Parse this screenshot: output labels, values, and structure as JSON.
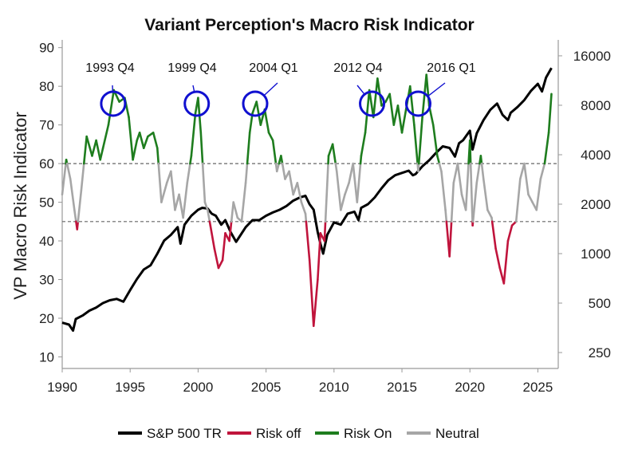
{
  "chart_data": {
    "type": "line",
    "title": "Variant Perception's Macro Risk Indicator",
    "ylabel": "VP Macro Risk Indicator",
    "xlim": [
      1990,
      2026.5
    ],
    "ylim": [
      7,
      92
    ],
    "y2lim": [
      200,
      20000
    ],
    "x_ticks": [
      1990,
      1995,
      2000,
      2005,
      2010,
      2015,
      2020,
      2025
    ],
    "y_ticks": [
      10,
      20,
      30,
      40,
      50,
      60,
      70,
      80,
      90
    ],
    "y2_ticks": [
      250,
      500,
      1000,
      2000,
      4000,
      8000,
      16000
    ],
    "thresholds": [
      60,
      45
    ],
    "colors": {
      "sp500": "#000000",
      "risk_off": "#c0143c",
      "risk_on": "#1e7d1e",
      "neutral": "#a6a6a6",
      "circle": "#1010d0",
      "axis": "#999999"
    },
    "legend": [
      {
        "label": "S&P 500 TR",
        "color": "#000000"
      },
      {
        "label": "Risk off",
        "color": "#c0143c"
      },
      {
        "label": "Risk On",
        "color": "#1e7d1e"
      },
      {
        "label": "Neutral",
        "color": "#a6a6a6"
      }
    ],
    "annotations": [
      {
        "label": "1993 Q4",
        "x": 1993.75,
        "y": 75.5
      },
      {
        "label": "1999 Q4",
        "x": 1999.9,
        "y": 75.5
      },
      {
        "label": "2004 Q1",
        "x": 2004.2,
        "y": 75.5
      },
      {
        "label": "2012 Q4",
        "x": 2012.8,
        "y": 75.5
      },
      {
        "label": "2016 Q1",
        "x": 2016.2,
        "y": 75.5
      }
    ],
    "series": [
      {
        "name": "VP Macro Risk Indicator",
        "x": [
          1990.0,
          1990.3,
          1990.6,
          1990.9,
          1991.1,
          1991.4,
          1991.8,
          1992.2,
          1992.5,
          1992.8,
          1993.0,
          1993.4,
          1993.8,
          1994.2,
          1994.6,
          1994.9,
          1995.2,
          1995.5,
          1995.7,
          1996.0,
          1996.3,
          1996.7,
          1997.0,
          1997.3,
          1997.7,
          1998.0,
          1998.3,
          1998.6,
          1998.9,
          1999.2,
          1999.5,
          1999.8,
          2000.0,
          2000.2,
          2000.5,
          2000.7,
          2000.9,
          2001.2,
          2001.5,
          2001.8,
          2002.0,
          2002.3,
          2002.6,
          2002.9,
          2003.2,
          2003.5,
          2003.8,
          2004.0,
          2004.3,
          2004.6,
          2004.9,
          2005.2,
          2005.5,
          2005.8,
          2006.1,
          2006.4,
          2006.7,
          2007.0,
          2007.3,
          2007.6,
          2007.9,
          2008.2,
          2008.5,
          2008.8,
          2009.0,
          2009.3,
          2009.6,
          2009.9,
          2010.2,
          2010.5,
          2010.8,
          2011.1,
          2011.4,
          2011.7,
          2012.0,
          2012.3,
          2012.6,
          2012.9,
          2013.2,
          2013.5,
          2013.8,
          2014.1,
          2014.4,
          2014.7,
          2015.0,
          2015.3,
          2015.6,
          2015.9,
          2016.2,
          2016.5,
          2016.8,
          2017.0,
          2017.3,
          2017.6,
          2017.9,
          2018.2,
          2018.5,
          2018.8,
          2019.1,
          2019.4,
          2019.7,
          2020.0,
          2020.2,
          2020.5,
          2020.8,
          2021.0,
          2021.3,
          2021.6,
          2021.9,
          2022.2,
          2022.5,
          2022.8,
          2023.1,
          2023.4,
          2023.7,
          2024.0,
          2024.3,
          2024.6,
          2024.9,
          2025.2,
          2025.5,
          2025.8,
          2026.0
        ],
        "y": [
          52,
          61,
          56,
          48,
          43,
          53,
          67,
          62,
          66,
          61,
          64,
          70,
          79,
          76,
          77,
          72,
          61,
          66,
          68,
          64,
          67,
          68,
          64,
          50,
          55,
          58,
          48,
          52,
          46,
          55,
          62,
          73,
          77,
          68,
          50,
          48,
          44,
          38,
          33,
          35,
          42,
          40,
          50,
          46,
          45,
          55,
          68,
          73,
          76,
          70,
          74,
          68,
          66,
          58,
          62,
          56,
          58,
          52,
          55,
          50,
          47,
          35,
          18,
          30,
          42,
          40,
          62,
          65,
          58,
          48,
          52,
          55,
          60,
          50,
          62,
          68,
          79,
          72,
          82,
          75,
          76,
          78,
          70,
          75,
          68,
          74,
          80,
          70,
          58,
          72,
          83,
          75,
          70,
          62,
          58,
          48,
          36,
          55,
          60,
          52,
          48,
          66,
          44,
          55,
          62,
          56,
          48,
          46,
          38,
          33,
          29,
          40,
          44,
          45,
          56,
          60,
          52,
          50,
          48,
          56,
          60,
          68,
          78
        ]
      },
      {
        "name": "S&P 500 TR",
        "x": [
          1990.0,
          1990.5,
          1990.8,
          1991.0,
          1991.5,
          1992.0,
          1992.5,
          1993.0,
          1993.5,
          1994.0,
          1994.5,
          1995.0,
          1995.5,
          1996.0,
          1996.5,
          1997.0,
          1997.5,
          1998.0,
          1998.5,
          1998.7,
          1999.0,
          1999.5,
          2000.0,
          2000.3,
          2000.7,
          2001.0,
          2001.3,
          2001.7,
          2002.0,
          2002.4,
          2002.8,
          2003.0,
          2003.5,
          2004.0,
          2004.5,
          2005.0,
          2005.5,
          2006.0,
          2006.5,
          2007.0,
          2007.5,
          2007.9,
          2008.2,
          2008.5,
          2008.8,
          2009.0,
          2009.2,
          2009.5,
          2010.0,
          2010.5,
          2011.0,
          2011.5,
          2011.8,
          2012.0,
          2012.5,
          2013.0,
          2013.5,
          2014.0,
          2014.5,
          2015.0,
          2015.5,
          2015.8,
          2016.0,
          2016.5,
          2017.0,
          2017.5,
          2018.0,
          2018.5,
          2018.9,
          2019.2,
          2019.5,
          2020.0,
          2020.2,
          2020.5,
          2021.0,
          2021.5,
          2022.0,
          2022.4,
          2022.8,
          2023.0,
          2023.5,
          2024.0,
          2024.5,
          2025.0,
          2025.3,
          2025.6,
          2026.0
        ],
        "y": [
          380,
          370,
          340,
          400,
          420,
          450,
          470,
          500,
          520,
          530,
          510,
          600,
          700,
          800,
          850,
          1000,
          1200,
          1300,
          1450,
          1150,
          1500,
          1700,
          1850,
          1900,
          1880,
          1750,
          1700,
          1500,
          1600,
          1350,
          1180,
          1250,
          1450,
          1600,
          1600,
          1700,
          1780,
          1850,
          1950,
          2100,
          2200,
          2250,
          2000,
          1850,
          1350,
          1150,
          1000,
          1300,
          1550,
          1500,
          1750,
          1800,
          1600,
          1900,
          2000,
          2200,
          2500,
          2800,
          3000,
          3100,
          3200,
          3000,
          3050,
          3400,
          3700,
          4100,
          4500,
          4400,
          3900,
          4700,
          4900,
          5600,
          4300,
          5400,
          6500,
          7500,
          8200,
          7000,
          6500,
          7200,
          7800,
          8600,
          9800,
          10800,
          9700,
          11800,
          13500
        ]
      }
    ]
  }
}
